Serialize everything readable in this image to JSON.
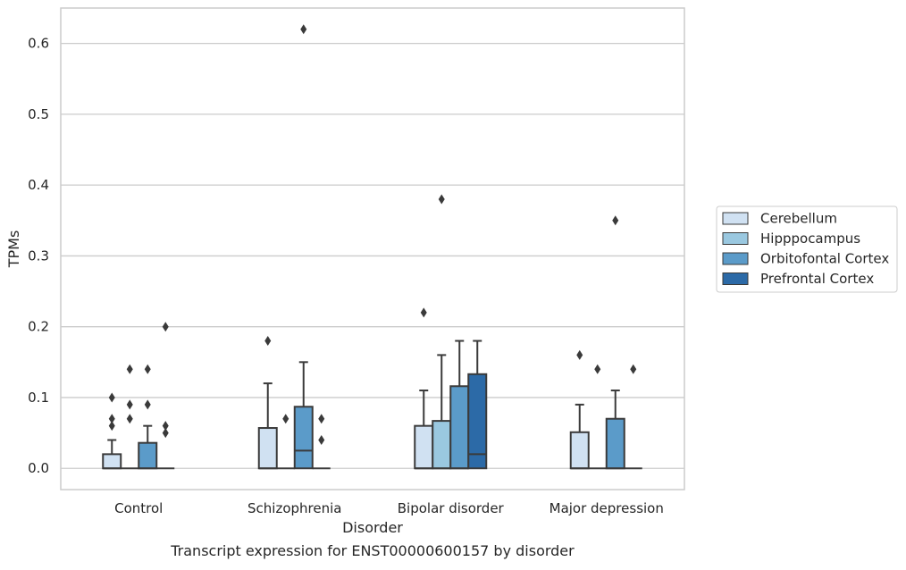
{
  "chart_data": {
    "type": "boxplot",
    "xlabel": "Disorder",
    "ylabel": "TPMs",
    "caption": "Transcript expression for ENST00000600157 by disorder",
    "categories": [
      "Control",
      "Schizophrenia",
      "Bipolar disorder",
      "Major depression"
    ],
    "ylim": [
      -0.03,
      0.65
    ],
    "yticks": [
      0.0,
      0.1,
      0.2,
      0.3,
      0.4,
      0.5,
      0.6
    ],
    "ytick_labels": [
      "0.0",
      "0.1",
      "0.2",
      "0.3",
      "0.4",
      "0.5",
      "0.6"
    ],
    "grid": true,
    "legend_position": "center-right",
    "series": [
      {
        "name": "Cerebellum",
        "color": "#d0e1f2",
        "boxes": [
          {
            "q1": 0.0,
            "median": 0.0,
            "q3": 0.02,
            "whisker_low": 0.0,
            "whisker_high": 0.04,
            "outliers": [
              0.06,
              0.07,
              0.1
            ]
          },
          {
            "q1": 0.0,
            "median": 0.0,
            "q3": 0.057,
            "whisker_low": 0.0,
            "whisker_high": 0.12,
            "outliers": [
              0.18
            ]
          },
          {
            "q1": 0.0,
            "median": 0.0,
            "q3": 0.06,
            "whisker_low": 0.0,
            "whisker_high": 0.11,
            "outliers": [
              0.22
            ]
          },
          {
            "q1": 0.0,
            "median": 0.0,
            "q3": 0.051,
            "whisker_low": 0.0,
            "whisker_high": 0.09,
            "outliers": [
              0.16
            ]
          }
        ]
      },
      {
        "name": "Hipppocampus",
        "color": "#9ac8e0",
        "boxes": [
          {
            "q1": 0.0,
            "median": 0.0,
            "q3": 0.0,
            "whisker_low": 0.0,
            "whisker_high": 0.0,
            "outliers": [
              0.07,
              0.09,
              0.14
            ]
          },
          {
            "q1": 0.0,
            "median": 0.0,
            "q3": 0.0,
            "whisker_low": 0.0,
            "whisker_high": 0.0,
            "outliers": [
              0.07
            ]
          },
          {
            "q1": 0.0,
            "median": 0.0,
            "q3": 0.067,
            "whisker_low": 0.0,
            "whisker_high": 0.16,
            "outliers": [
              0.38
            ]
          },
          {
            "q1": 0.0,
            "median": 0.0,
            "q3": 0.0,
            "whisker_low": 0.0,
            "whisker_high": 0.0,
            "outliers": [
              0.14
            ]
          }
        ]
      },
      {
        "name": "Orbitofontal Cortex",
        "color": "#5b9bc9",
        "boxes": [
          {
            "q1": 0.0,
            "median": 0.0,
            "q3": 0.036,
            "whisker_low": 0.0,
            "whisker_high": 0.06,
            "outliers": [
              0.09,
              0.14
            ]
          },
          {
            "q1": 0.0,
            "median": 0.025,
            "q3": 0.087,
            "whisker_low": 0.0,
            "whisker_high": 0.15,
            "outliers": [
              0.62
            ]
          },
          {
            "q1": 0.0,
            "median": 0.0,
            "q3": 0.116,
            "whisker_low": 0.0,
            "whisker_high": 0.18,
            "outliers": []
          },
          {
            "q1": 0.0,
            "median": 0.0,
            "q3": 0.07,
            "whisker_low": 0.0,
            "whisker_high": 0.11,
            "outliers": [
              0.35
            ]
          }
        ]
      },
      {
        "name": "Prefrontal Cortex",
        "color": "#2c6aa7",
        "boxes": [
          {
            "q1": 0.0,
            "median": 0.0,
            "q3": 0.0,
            "whisker_low": 0.0,
            "whisker_high": 0.0,
            "outliers": [
              0.05,
              0.06,
              0.2
            ]
          },
          {
            "q1": 0.0,
            "median": 0.0,
            "q3": 0.0,
            "whisker_low": 0.0,
            "whisker_high": 0.0,
            "outliers": [
              0.04,
              0.07
            ]
          },
          {
            "q1": 0.0,
            "median": 0.02,
            "q3": 0.133,
            "whisker_low": 0.0,
            "whisker_high": 0.18,
            "outliers": []
          },
          {
            "q1": 0.0,
            "median": 0.0,
            "q3": 0.0,
            "whisker_low": 0.0,
            "whisker_high": 0.0,
            "outliers": [
              0.14
            ]
          }
        ]
      }
    ]
  }
}
